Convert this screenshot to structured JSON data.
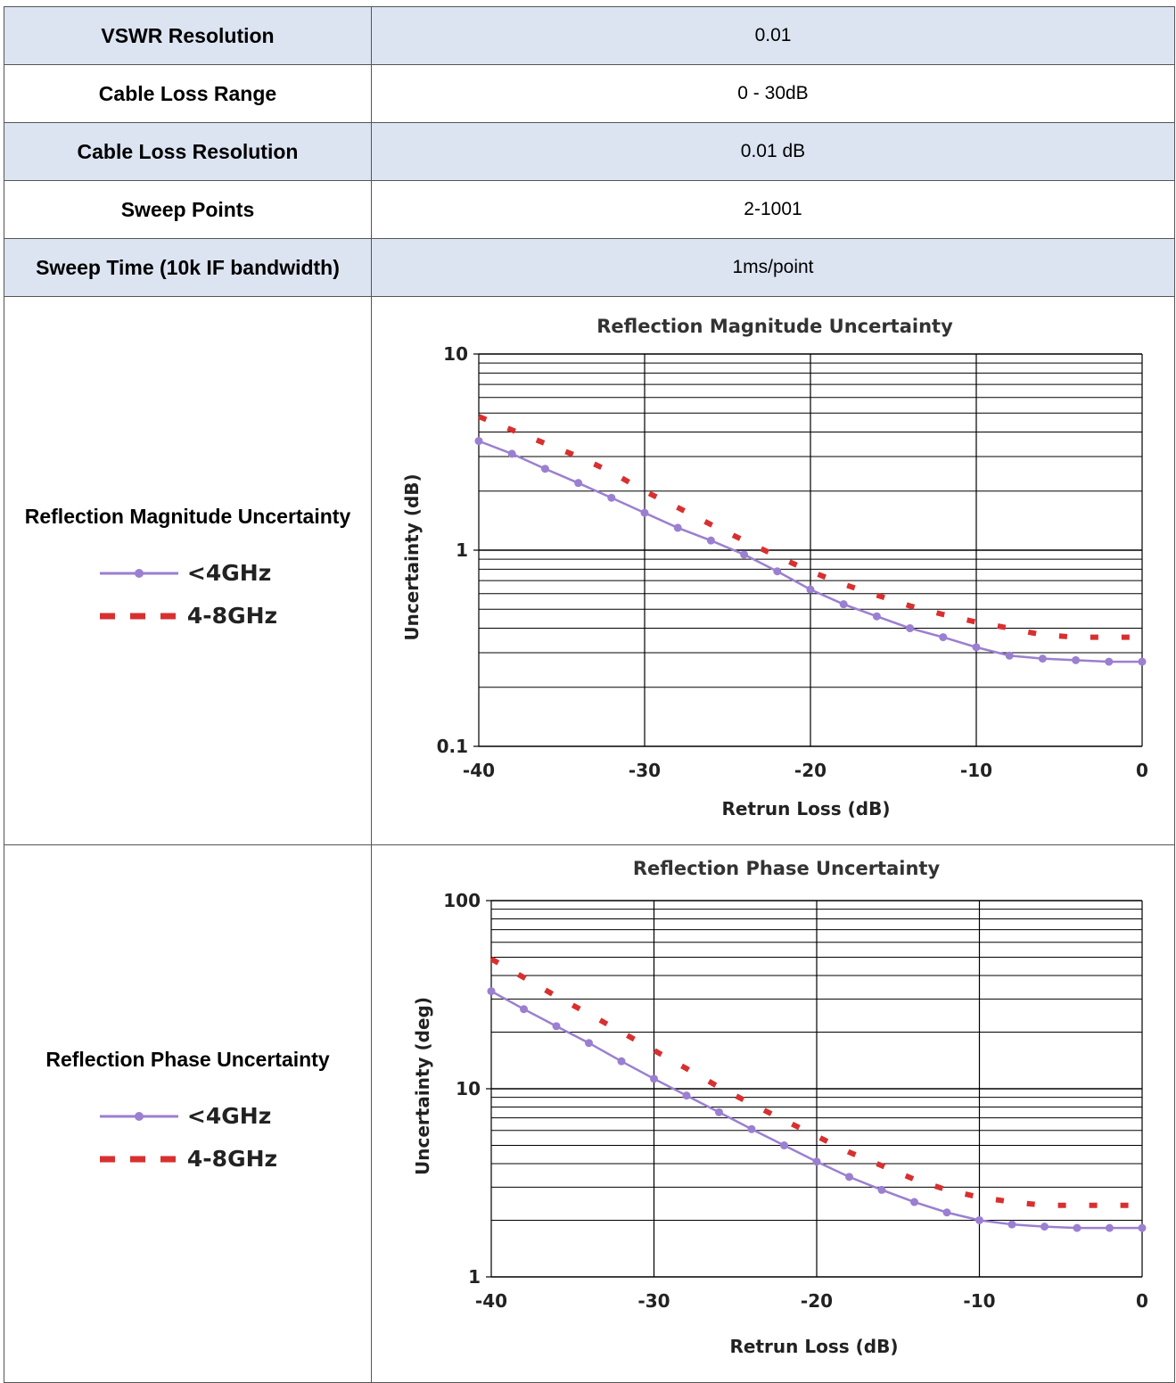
{
  "table": {
    "rows": [
      {
        "label": "VSWR Resolution",
        "value": "0.01"
      },
      {
        "label": "Cable Loss Range",
        "value": "0 - 30dB"
      },
      {
        "label": "Cable Loss Resolution",
        "value": "0.01 dB"
      },
      {
        "label": "Sweep Points",
        "value": "2-1001"
      },
      {
        "label": "Sweep Time (10k IF bandwidth)",
        "value": "1ms/point"
      }
    ]
  },
  "chart_sections": [
    {
      "label": "Reflection Magnitude Uncertainty",
      "legend": [
        "<4GHz",
        "4-8GHz"
      ]
    },
    {
      "label": "Reflection Phase Uncertainty",
      "legend": [
        "<4GHz",
        "4-8GHz"
      ]
    }
  ],
  "colors": {
    "header_fill": "#dce4f2",
    "series_low": "#9b7fd0",
    "series_high": "#d83030"
  },
  "chart_data": [
    {
      "type": "line",
      "title": "Reflection Magnitude Uncertainty",
      "xlabel": "Retrun Loss (dB)",
      "ylabel": "Uncertainty (dB)",
      "xlim": [
        -40,
        0
      ],
      "ylim": [
        0.1,
        10
      ],
      "yscale": "log",
      "grid": true,
      "xticks": [
        "-40",
        "-30",
        "-20",
        "-10",
        "0"
      ],
      "yticks": [
        "10",
        "1",
        "0.1"
      ],
      "series": [
        {
          "name": "<4GHz",
          "style": "solid-markers",
          "x": [
            -40,
            -38,
            -36,
            -34,
            -32,
            -30,
            -28,
            -26,
            -24,
            -22,
            -20,
            -18,
            -16,
            -14,
            -12,
            -10,
            -8,
            -6,
            -4,
            -2,
            0
          ],
          "y": [
            3.6,
            3.1,
            2.6,
            2.2,
            1.85,
            1.55,
            1.3,
            1.12,
            0.95,
            0.78,
            0.63,
            0.53,
            0.46,
            0.4,
            0.36,
            0.32,
            0.29,
            0.28,
            0.275,
            0.27,
            0.27
          ]
        },
        {
          "name": "4-8GHz",
          "style": "dashed",
          "x": [
            -40,
            -38,
            -36,
            -34,
            -32,
            -30,
            -28,
            -26,
            -24,
            -22,
            -20,
            -18,
            -16,
            -14,
            -12,
            -10,
            -8,
            -6,
            -4,
            -2,
            0
          ],
          "y": [
            4.8,
            4.1,
            3.5,
            3.0,
            2.5,
            2.0,
            1.65,
            1.35,
            1.12,
            0.93,
            0.78,
            0.67,
            0.59,
            0.52,
            0.47,
            0.43,
            0.4,
            0.37,
            0.36,
            0.36,
            0.36
          ]
        }
      ]
    },
    {
      "type": "line",
      "title": "Reflection Phase Uncertainty",
      "xlabel": "Retrun Loss (dB)",
      "ylabel": "Uncertainty (deg)",
      "xlim": [
        -40,
        0
      ],
      "ylim": [
        1,
        100
      ],
      "yscale": "log",
      "grid": true,
      "xticks": [
        "-40",
        "-30",
        "-20",
        "-10",
        "0"
      ],
      "yticks": [
        "100",
        "10",
        "1"
      ],
      "series": [
        {
          "name": "<4GHz",
          "style": "solid-markers",
          "x": [
            -40,
            -38,
            -36,
            -34,
            -32,
            -30,
            -28,
            -26,
            -24,
            -22,
            -20,
            -18,
            -16,
            -14,
            -12,
            -10,
            -8,
            -6,
            -4,
            -2,
            0
          ],
          "y": [
            33,
            26.5,
            21.5,
            17.5,
            14,
            11.3,
            9.2,
            7.5,
            6.1,
            5.0,
            4.1,
            3.4,
            2.9,
            2.5,
            2.2,
            2.0,
            1.9,
            1.85,
            1.82,
            1.82,
            1.82
          ]
        },
        {
          "name": "4-8GHz",
          "style": "dashed",
          "x": [
            -40,
            -38,
            -36,
            -34,
            -32,
            -30,
            -28,
            -26,
            -24,
            -22,
            -20,
            -18,
            -16,
            -14,
            -12,
            -10,
            -8,
            -6,
            -4,
            -2,
            0
          ],
          "y": [
            49,
            39,
            31,
            25,
            20,
            16,
            12.8,
            10.2,
            8.3,
            6.8,
            5.6,
            4.6,
            3.9,
            3.3,
            2.9,
            2.65,
            2.5,
            2.4,
            2.4,
            2.4,
            2.4
          ]
        }
      ]
    }
  ]
}
